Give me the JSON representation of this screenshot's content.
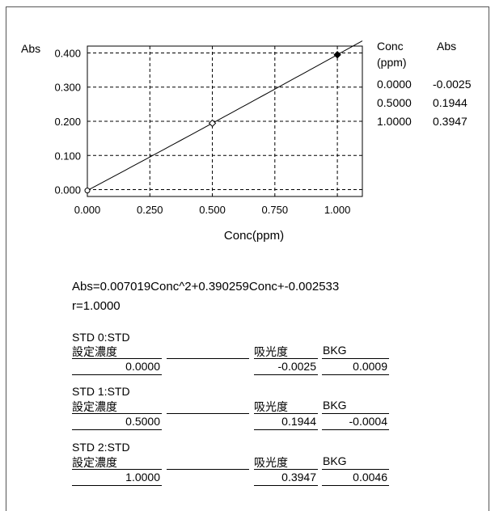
{
  "chart_data": {
    "type": "scatter",
    "ylabel": "Abs",
    "xlabel": "Conc(ppm)",
    "xlim": [
      0,
      1.1
    ],
    "ylim": [
      -0.02,
      0.42
    ],
    "xticks": [
      "0.000",
      "0.250",
      "0.500",
      "0.750",
      "1.000"
    ],
    "yticks": [
      "0.000",
      "0.100",
      "0.200",
      "0.300",
      "0.400"
    ],
    "grid": true,
    "points": [
      {
        "x": 0.0,
        "y": -0.0025,
        "marker": "circle-open"
      },
      {
        "x": 0.5,
        "y": 0.1944,
        "marker": "diamond-open"
      },
      {
        "x": 1.0,
        "y": 0.3947,
        "marker": "diamond-filled"
      }
    ],
    "fit": {
      "a": 0.007019,
      "b": 0.390259,
      "c": -0.002533
    }
  },
  "table": {
    "col1_header": "Conc",
    "col1_unit": "(ppm)",
    "col2_header": "Abs",
    "rows": [
      {
        "conc": "0.0000",
        "abs": "-0.0025"
      },
      {
        "conc": "0.5000",
        "abs": "0.1944"
      },
      {
        "conc": "1.0000",
        "abs": "0.3947"
      }
    ]
  },
  "equation": "Abs=0.007019Conc^2+0.390259Conc+-0.002533",
  "r_value": "r=1.0000",
  "standards": [
    {
      "name": "STD 0:STD",
      "label_conc": "設定濃度",
      "label_abs": "吸光度",
      "label_bkg": "BKG",
      "conc": "0.0000",
      "abs": "-0.0025",
      "bkg": "0.0009"
    },
    {
      "name": "STD 1:STD",
      "label_conc": "設定濃度",
      "label_abs": "吸光度",
      "label_bkg": "BKG",
      "conc": "0.5000",
      "abs": "0.1944",
      "bkg": "-0.0004"
    },
    {
      "name": "STD 2:STD",
      "label_conc": "設定濃度",
      "label_abs": "吸光度",
      "label_bkg": "BKG",
      "conc": "1.0000",
      "abs": "0.3947",
      "bkg": "0.0046"
    }
  ]
}
